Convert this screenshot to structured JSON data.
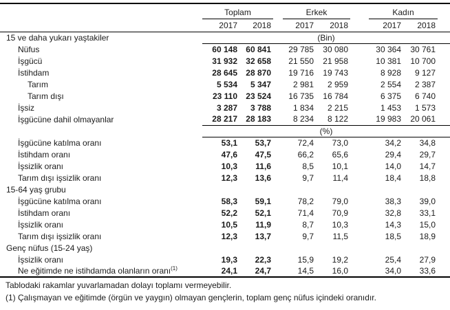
{
  "chart_data": {
    "type": "table",
    "title": "",
    "column_groups": [
      "Toplam",
      "Erkek",
      "Kadın"
    ],
    "year_headers": [
      "2017",
      "2018",
      "2017",
      "2018",
      "2017",
      "2018"
    ],
    "rows": [
      {
        "label": "15 ve daha yukarı yaştakiler",
        "indent": 0,
        "unit": "(Bin)"
      },
      {
        "label": "Nüfus",
        "indent": 1,
        "values": [
          "60 148",
          "60 841",
          "29 785",
          "30 080",
          "30 364",
          "30 761"
        ]
      },
      {
        "label": "İşgücü",
        "indent": 1,
        "values": [
          "31 932",
          "32 658",
          "21 550",
          "21 958",
          "10 381",
          "10 700"
        ]
      },
      {
        "label": "İstihdam",
        "indent": 1,
        "values": [
          "28 645",
          "28 870",
          "19 716",
          "19 743",
          "8 928",
          "9 127"
        ]
      },
      {
        "label": "Tarım",
        "indent": 2,
        "values": [
          "5 534",
          "5 347",
          "2 981",
          "2 959",
          "2 554",
          "2 387"
        ]
      },
      {
        "label": "Tarım dışı",
        "indent": 2,
        "values": [
          "23 110",
          "23 524",
          "16 735",
          "16 784",
          "6 375",
          "6 740"
        ]
      },
      {
        "label": "İşsiz",
        "indent": 1,
        "values": [
          "3 287",
          "3 788",
          "1 834",
          "2 215",
          "1 453",
          "1 573"
        ]
      },
      {
        "label": "İşgücüne dahil olmayanlar",
        "indent": 1,
        "values": [
          "28 217",
          "28 183",
          "8 234",
          "8 122",
          "19 983",
          "20 061"
        ]
      },
      {
        "label": "",
        "indent": 0,
        "unit": "(%)",
        "unit_rule": "both"
      },
      {
        "label": "İşgücüne katılma oranı",
        "indent": 1,
        "values": [
          "53,1",
          "53,7",
          "72,4",
          "73,0",
          "34,2",
          "34,8"
        ]
      },
      {
        "label": "İstihdam oranı",
        "indent": 1,
        "values": [
          "47,6",
          "47,5",
          "66,2",
          "65,6",
          "29,4",
          "29,7"
        ]
      },
      {
        "label": "İşsizlik oranı",
        "indent": 1,
        "values": [
          "10,3",
          "11,6",
          "8,5",
          "10,1",
          "14,0",
          "14,7"
        ]
      },
      {
        "label": "Tarım dışı işsizlik oranı",
        "indent": 1,
        "values": [
          "12,3",
          "13,6",
          "9,7",
          "11,4",
          "18,4",
          "18,8"
        ]
      },
      {
        "label": "15-64 yaş grubu",
        "indent": 0
      },
      {
        "label": "İşgücüne katılma oranı",
        "indent": 1,
        "values": [
          "58,3",
          "59,1",
          "78,2",
          "79,0",
          "38,3",
          "39,0"
        ]
      },
      {
        "label": "İstihdam oranı",
        "indent": 1,
        "values": [
          "52,2",
          "52,1",
          "71,4",
          "70,9",
          "32,8",
          "33,1"
        ]
      },
      {
        "label": "İşsizlik oranı",
        "indent": 1,
        "values": [
          "10,5",
          "11,9",
          "8,7",
          "10,3",
          "14,3",
          "15,0"
        ]
      },
      {
        "label": "Tarım dışı işsizlik oranı",
        "indent": 1,
        "values": [
          "12,3",
          "13,7",
          "9,7",
          "11,5",
          "18,5",
          "18,9"
        ]
      },
      {
        "label": "Genç nüfus (15-24 yaş)",
        "indent": 0
      },
      {
        "label": "İşsizlik oranı",
        "indent": 1,
        "values": [
          "19,3",
          "22,3",
          "15,9",
          "19,2",
          "25,4",
          "27,9"
        ]
      },
      {
        "label": "Ne eğitimde ne istihdamda olanların oranı",
        "sup": "(1)",
        "indent": 1,
        "values": [
          "24,1",
          "24,7",
          "14,5",
          "16,0",
          "34,0",
          "33,6"
        ]
      }
    ]
  },
  "footnotes": [
    "Tablodaki rakamlar yuvarlamadan dolayı toplamı vermeyebilir.",
    "(1) Çalışmayan ve eğitimde (örgün ve yaygın) olmayan gençlerin, toplam genç nüfus içindeki oranıdır."
  ]
}
